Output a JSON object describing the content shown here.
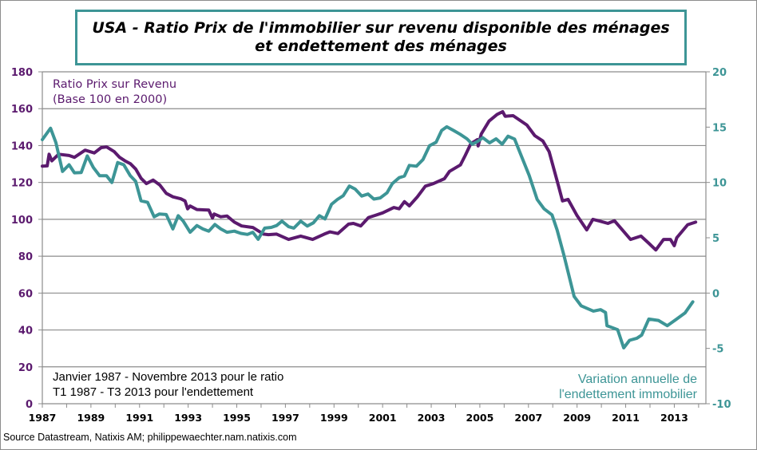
{
  "title": {
    "line1": "USA - Ratio Prix de l'immobilier sur revenu disponible des ménages",
    "line2": "et endettement des ménages"
  },
  "source": "Source Datastream, Natixis AM; philippewaechter.nam.natixis.com",
  "chart_data": {
    "type": "line",
    "title": "USA - Ratio Prix de l'immobilier sur revenu disponible des ménages et endettement des ménages",
    "xlim": [
      1987,
      2014.3
    ],
    "x_ticks": [
      "1987",
      "1989",
      "1991",
      "1993",
      "1995",
      "1997",
      "1999",
      "2001",
      "2003",
      "2005",
      "2007",
      "2009",
      "2011",
      "2013"
    ],
    "y_left": {
      "lim": [
        0,
        180
      ],
      "ticks": [
        "0",
        "20",
        "40",
        "60",
        "80",
        "100",
        "120",
        "140",
        "160",
        "180"
      ],
      "color": "#5b1a6e"
    },
    "y_right": {
      "lim": [
        -10,
        20
      ],
      "ticks": [
        "-10",
        "-5",
        "0",
        "5",
        "10",
        "15",
        "20"
      ],
      "color": "#3d9596"
    },
    "grid": true,
    "annotations": {
      "left_label": [
        "Ratio Prix sur Revenu",
        "(Base 100 en 2000)"
      ],
      "period_note": [
        "Janvier 1987 - Novembre 2013 pour le ratio",
        "T1 1987 - T3 2013 pour l'endettement"
      ],
      "right_label": [
        "Variation annuelle de",
        "l'endettement immobilier"
      ]
    },
    "series": [
      {
        "axis": "left",
        "color": "#5b1a6e",
        "x": [
          1987.0,
          1987.2,
          1987.28,
          1987.39,
          1987.67,
          1988.1,
          1988.32,
          1988.76,
          1989.14,
          1989.42,
          1989.64,
          1989.96,
          1990.18,
          1990.4,
          1990.62,
          1990.84,
          1991.06,
          1991.28,
          1991.56,
          1991.83,
          1992.1,
          1992.37,
          1992.7,
          1992.87,
          1992.98,
          1993.08,
          1993.36,
          1993.85,
          1994.0,
          1994.07,
          1994.34,
          1994.6,
          1994.9,
          1995.2,
          1995.66,
          1996.1,
          1996.3,
          1996.64,
          1997.13,
          1997.63,
          1998.12,
          1998.6,
          1998.83,
          1999.16,
          1999.6,
          1999.8,
          2000.1,
          2000.42,
          2000.69,
          2001.0,
          2001.46,
          2001.68,
          2001.9,
          2002.1,
          2002.43,
          2002.76,
          2003.09,
          2003.54,
          2003.75,
          2004.2,
          2004.4,
          2004.63,
          2004.9,
          2004.93,
          2005.06,
          2005.38,
          2005.71,
          2005.94,
          2006.04,
          2006.37,
          2006.93,
          2007.26,
          2007.59,
          2007.85,
          2008.24,
          2008.4,
          2008.63,
          2009.0,
          2009.4,
          2009.65,
          2009.88,
          2010.27,
          2010.54,
          2011.2,
          2011.63,
          2011.95,
          2012.24,
          2012.56,
          2012.84,
          2013.0,
          2013.1,
          2013.55,
          2013.88
        ],
        "values": [
          128.8,
          129,
          135.3,
          131.7,
          135.3,
          134.6,
          133.6,
          137.5,
          136,
          138.9,
          139.3,
          136.7,
          133.6,
          131.7,
          130.2,
          127.3,
          122.3,
          119.4,
          121.3,
          118.7,
          114.1,
          112.2,
          111.1,
          110,
          105.7,
          107.2,
          105.3,
          105,
          100.7,
          102.9,
          101.4,
          101.8,
          98.5,
          96.4,
          95.6,
          92,
          91.7,
          92,
          89.1,
          90.9,
          89.1,
          92,
          93.2,
          92.3,
          97.4,
          97.8,
          96.4,
          101,
          102.1,
          103.5,
          106.4,
          105.7,
          109.6,
          107.3,
          112.2,
          118,
          119.4,
          122,
          126,
          129.5,
          134.6,
          141,
          143.2,
          139.8,
          146.3,
          153.3,
          156.9,
          158.4,
          155.9,
          156.2,
          151.2,
          145.4,
          142.5,
          136.7,
          118,
          110,
          110.8,
          102,
          94.3,
          100,
          99.2,
          97.8,
          99.2,
          89.1,
          90.9,
          87,
          83.4,
          89.1,
          89.1,
          85.7,
          90,
          97.1,
          98.5
        ]
      },
      {
        "axis": "right",
        "color": "#3d9596",
        "x": [
          1987.0,
          1987.34,
          1987.56,
          1987.83,
          1988.1,
          1988.32,
          1988.6,
          1988.85,
          1989.1,
          1989.36,
          1989.64,
          1989.86,
          1990.1,
          1990.35,
          1990.62,
          1990.84,
          1991.06,
          1991.33,
          1991.6,
          1991.82,
          1992.1,
          1992.37,
          1992.59,
          1992.8,
          1993.08,
          1993.36,
          1993.6,
          1993.85,
          1994.1,
          1994.34,
          1994.6,
          1994.9,
          1995.17,
          1995.44,
          1995.66,
          1995.88,
          1996.15,
          1996.42,
          1996.64,
          1996.86,
          1997.13,
          1997.35,
          1997.63,
          1997.9,
          1998.15,
          1998.4,
          1998.63,
          1998.9,
          1999.14,
          1999.38,
          1999.63,
          1999.87,
          2000.14,
          2000.4,
          2000.64,
          2000.9,
          2001.18,
          2001.4,
          2001.68,
          2001.9,
          2002.1,
          2002.39,
          2002.66,
          2002.93,
          2003.2,
          2003.43,
          2003.64,
          2003.92,
          2004.19,
          2004.47,
          2004.69,
          2004.9,
          2005.12,
          2005.4,
          2005.67,
          2005.92,
          2006.16,
          2006.43,
          2006.7,
          2007.03,
          2007.36,
          2007.64,
          2007.97,
          2008.18,
          2008.46,
          2008.88,
          2009.17,
          2009.67,
          2009.97,
          2010.17,
          2010.23,
          2010.67,
          2010.92,
          2011.16,
          2011.46,
          2011.66,
          2011.95,
          2012.35,
          2012.71,
          2013.05,
          2013.44,
          2013.76
        ],
        "values": [
          13.87,
          14.9,
          13.6,
          11.0,
          11.6,
          10.87,
          10.9,
          12.4,
          11.35,
          10.6,
          10.6,
          10.0,
          11.8,
          11.6,
          10.6,
          10.1,
          8.34,
          8.2,
          6.9,
          7.15,
          7.1,
          5.8,
          7.0,
          6.5,
          5.5,
          6.1,
          5.8,
          5.6,
          6.2,
          5.8,
          5.5,
          5.6,
          5.4,
          5.3,
          5.5,
          4.86,
          5.87,
          5.94,
          6.1,
          6.5,
          6.0,
          5.87,
          6.5,
          6.06,
          6.35,
          7.0,
          6.7,
          8.03,
          8.46,
          8.8,
          9.67,
          9.4,
          8.77,
          8.95,
          8.5,
          8.6,
          9.06,
          9.9,
          10.43,
          10.58,
          11.54,
          11.47,
          12.07,
          13.32,
          13.63,
          14.7,
          15.03,
          14.7,
          14.35,
          13.94,
          13.46,
          13.7,
          14.04,
          13.58,
          13.94,
          13.46,
          14.18,
          13.92,
          12.43,
          10.63,
          8.46,
          7.62,
          7.07,
          5.7,
          3.42,
          -0.31,
          -1.15,
          -1.63,
          -1.5,
          -1.75,
          -2.95,
          -3.31,
          -4.95,
          -4.27,
          -4.08,
          -3.79,
          -2.35,
          -2.47,
          -2.95,
          -2.42,
          -1.8,
          -0.79
        ]
      }
    ]
  }
}
